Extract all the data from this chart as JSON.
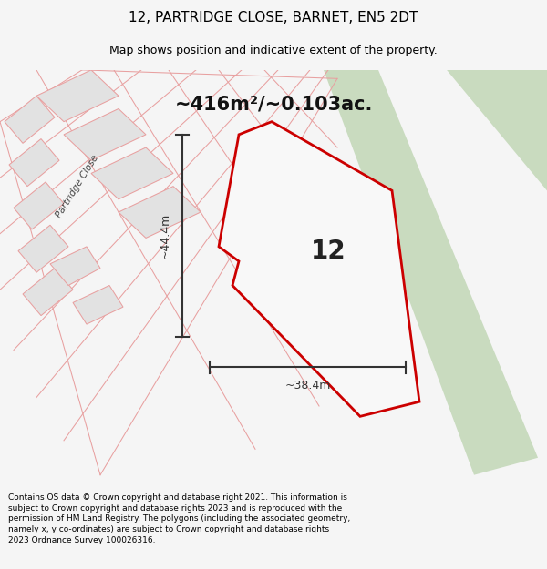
{
  "title_line1": "12, PARTRIDGE CLOSE, BARNET, EN5 2DT",
  "title_line2": "Map shows position and indicative extent of the property.",
  "area_text": "~416m²/~0.103ac.",
  "label_12": "12",
  "dim_height": "~44.4m",
  "dim_width": "~38.4m",
  "footer_text": "Contains OS data © Crown copyright and database right 2021. This information is subject to Crown copyright and database rights 2023 and is reproduced with the permission of HM Land Registry. The polygons (including the associated geometry, namely x, y co-ordinates) are subject to Crown copyright and database rights 2023 Ordnance Survey 100026316.",
  "bg_color": "#f5f5f5",
  "map_bg": "#ffffff",
  "green_strip_color": "#c9dbbf",
  "red_polygon_color": "#cc0000",
  "neighbor_line_color": "#e8a0a0",
  "neighbor_fill_color": "#e2e2e2",
  "dim_line_color": "#333333",
  "street_label": "Partridge Close",
  "title_fontsize": 11,
  "subtitle_fontsize": 9,
  "area_fontsize": 15,
  "label_fontsize": 20,
  "dim_fontsize": 9,
  "footer_fontsize": 6.5
}
